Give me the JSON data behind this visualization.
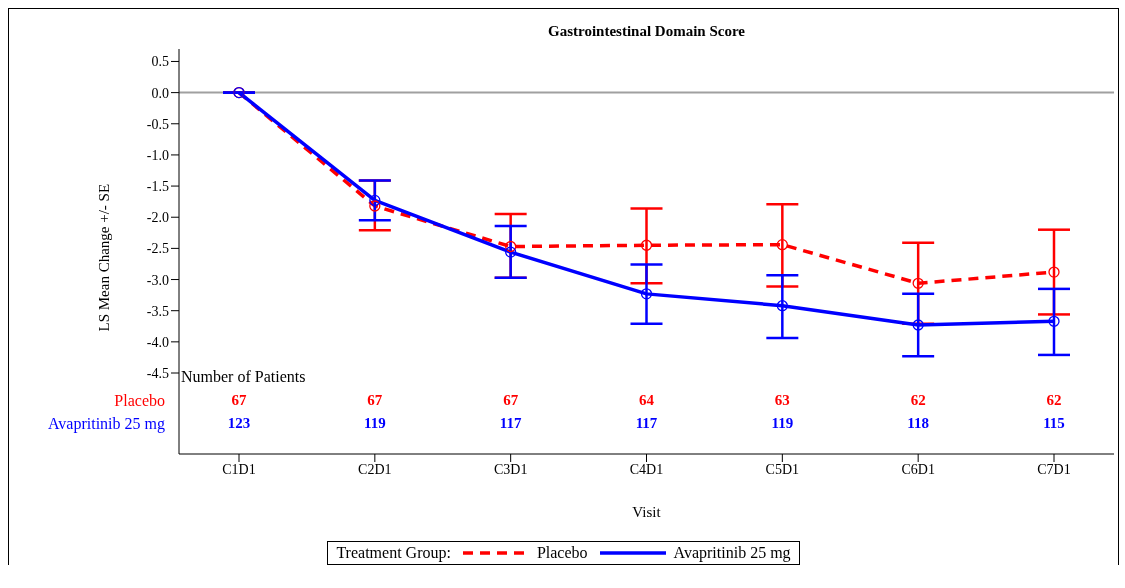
{
  "chart_data": {
    "type": "line",
    "title": "Gastrointestinal Domain Score",
    "xlabel": "Visit",
    "ylabel": "LS Mean Change +/- SE",
    "legend_title": "Treatment Group:",
    "categories": [
      "C1D1",
      "C2D1",
      "C3D1",
      "C4D1",
      "C5D1",
      "C6D1",
      "C7D1"
    ],
    "series": [
      {
        "name": "Placebo",
        "color": "#ff0000",
        "line_style": "dashed",
        "values": [
          0,
          -1.82,
          -2.47,
          -2.45,
          -2.44,
          -3.06,
          -2.88
        ],
        "errors": [
          null,
          [
            -2.21,
            -1.41
          ],
          [
            -2.97,
            -1.95
          ],
          [
            -3.06,
            -1.86
          ],
          [
            -3.11,
            -1.79
          ],
          [
            -3.71,
            -2.41
          ],
          [
            -3.56,
            -2.2
          ]
        ]
      },
      {
        "name": "Avapritinib 25 mg",
        "color": "#0000ff",
        "line_style": "solid",
        "values": [
          0,
          -1.73,
          -2.56,
          -3.23,
          -3.42,
          -3.73,
          -3.67
        ],
        "errors": [
          null,
          [
            -2.05,
            -1.41
          ],
          [
            -2.97,
            -2.14
          ],
          [
            -3.71,
            -2.76
          ],
          [
            -3.94,
            -2.93
          ],
          [
            -4.23,
            -3.23
          ],
          [
            -4.21,
            -3.15
          ]
        ]
      }
    ],
    "ylim": [
      -5.8,
      0.7
    ],
    "yticks": [
      0.5,
      {
        "value": 0,
        "label": "0.0"
      },
      -0.5,
      {
        "value": -1,
        "label": "-1.0"
      },
      -1.5,
      {
        "value": -2,
        "label": "-2.0"
      },
      -2.5,
      {
        "value": -3,
        "label": "-3.0"
      },
      -3.5,
      {
        "value": -4,
        "label": "-4.0"
      },
      -4.5
    ],
    "ref_lines": [
      {
        "axis": "y",
        "value": 0,
        "color": "#a0a0a0"
      }
    ],
    "marker": "circle",
    "grid": false,
    "legend": "bottom",
    "annotations": [
      "Number of Patients",
      "Placebo",
      "67",
      "67",
      "67",
      "64",
      "63",
      "62",
      "62",
      "Avapritinib 25 mg",
      "123",
      "119",
      "117",
      "117",
      "119",
      "118",
      "115"
    ]
  }
}
